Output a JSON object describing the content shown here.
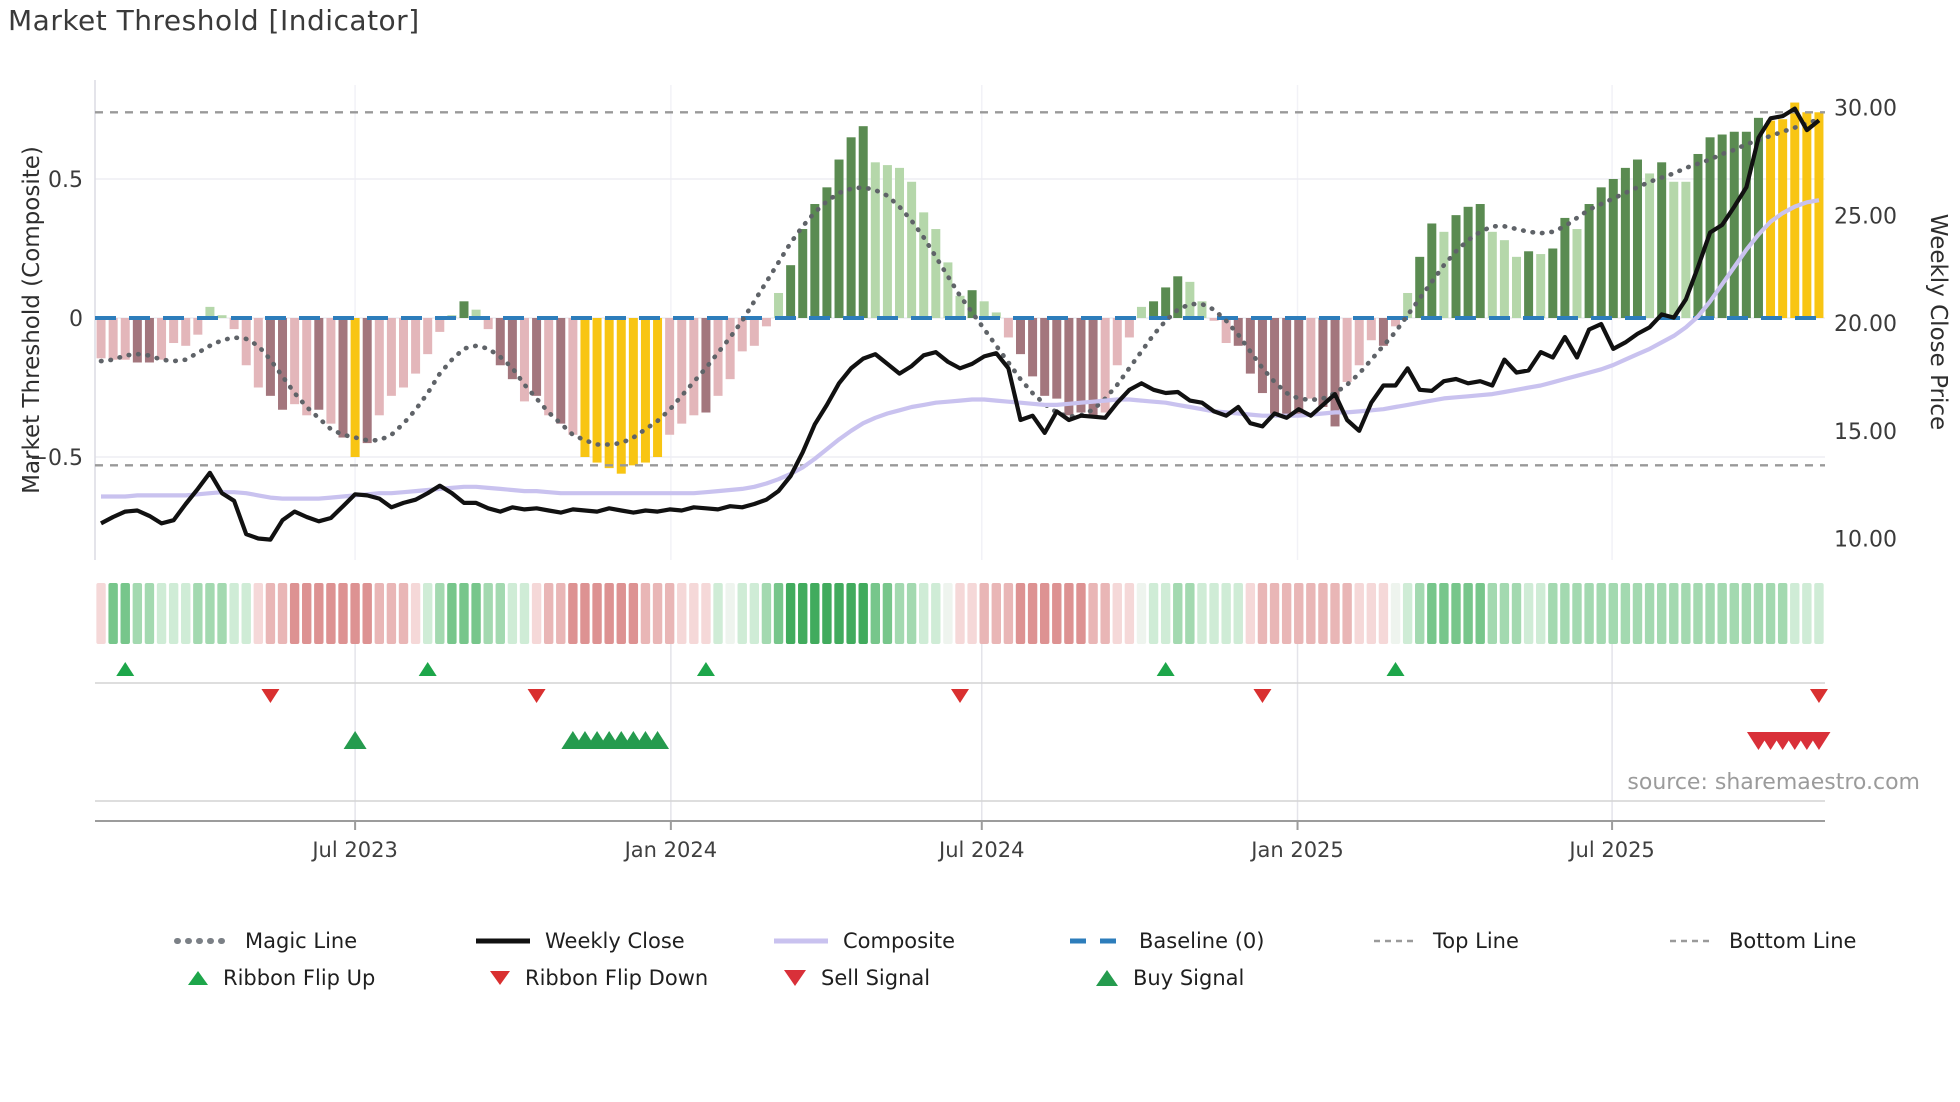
{
  "header": {
    "title": "Market Threshold [Indicator]"
  },
  "axes": {
    "left": {
      "title": "Market Threshold (Composite)",
      "ticks": [
        "0.5",
        "0",
        "−0.5"
      ],
      "tick_values": [
        0.5,
        0,
        -0.5
      ],
      "range": [
        -0.87,
        0.86
      ]
    },
    "right": {
      "title": "Weekly Close Price",
      "ticks": [
        "30.00",
        "25.00",
        "20.00",
        "15.00",
        "10.00"
      ],
      "tick_values": [
        30,
        25,
        20,
        15,
        10
      ],
      "range": [
        9.0,
        31.3
      ]
    },
    "x": {
      "tick_labels": [
        "Jul 2023",
        "Jan 2024",
        "Jul 2024",
        "Jan 2025",
        "Jul 2025"
      ],
      "tick_weeks": [
        21,
        47.1,
        72.8,
        98.9,
        124.9
      ]
    }
  },
  "footer": {
    "source": "source: sharemaestro.com"
  },
  "legend": {
    "items": [
      {
        "label": "Magic Line",
        "glyph": "dotted-gray"
      },
      {
        "label": "Weekly Close",
        "glyph": "solid-black"
      },
      {
        "label": "Composite",
        "glyph": "solid-lavender"
      },
      {
        "label": "Baseline (0)",
        "glyph": "dashed-blue"
      },
      {
        "label": "Top Line",
        "glyph": "smalldash-gray"
      },
      {
        "label": "Bottom Line",
        "glyph": "smalldash-gray"
      },
      {
        "label": "Ribbon Flip Up",
        "glyph": "tri-up-green"
      },
      {
        "label": "Ribbon Flip Down",
        "glyph": "tri-down-red"
      },
      {
        "label": "Sell Signal",
        "glyph": "tri-down-red"
      },
      {
        "label": "Buy Signal",
        "glyph": "tri-up-green"
      }
    ]
  },
  "chart_data": {
    "type": "bar",
    "title": "Market Threshold [Indicator]",
    "x_axis": "weekly, Feb 2023 - Dec 2025",
    "baseline": 0,
    "top_line": 0.74,
    "bottom_line": -0.53,
    "grid": "horizontal at 0.5/0/-0.5, vertical at半 semiannual ticks",
    "legend_position": "bottom",
    "bars": {
      "name": "Market Threshold (Composite) weekly bars",
      "values": [
        -0.145,
        -0.15,
        -0.15,
        -0.16,
        -0.16,
        -0.15,
        -0.09,
        -0.1,
        -0.06,
        0.04,
        0.01,
        -0.04,
        -0.17,
        -0.25,
        -0.28,
        -0.33,
        -0.31,
        -0.35,
        -0.33,
        -0.38,
        -0.43,
        -0.5,
        -0.45,
        -0.35,
        -0.28,
        -0.25,
        -0.2,
        -0.13,
        -0.05,
        0.01,
        0.06,
        0.03,
        -0.04,
        -0.17,
        -0.22,
        -0.3,
        -0.28,
        -0.35,
        -0.38,
        -0.42,
        -0.5,
        -0.52,
        -0.54,
        -0.56,
        -0.53,
        -0.52,
        -0.5,
        -0.42,
        -0.38,
        -0.35,
        -0.34,
        -0.28,
        -0.22,
        -0.12,
        -0.1,
        -0.03,
        0.09,
        0.19,
        0.32,
        0.41,
        0.47,
        0.57,
        0.65,
        0.69,
        0.56,
        0.55,
        0.54,
        0.49,
        0.38,
        0.32,
        0.2,
        0.08,
        0.1,
        0.06,
        0.02,
        -0.07,
        -0.13,
        -0.21,
        -0.28,
        -0.29,
        -0.35,
        -0.34,
        -0.35,
        -0.34,
        -0.17,
        -0.07,
        0.04,
        0.06,
        0.11,
        0.15,
        0.13,
        0.06,
        -0.01,
        -0.09,
        -0.1,
        -0.2,
        -0.27,
        -0.35,
        -0.35,
        -0.35,
        -0.29,
        -0.32,
        -0.39,
        -0.23,
        -0.17,
        -0.08,
        -0.1,
        -0.03,
        0.09,
        0.22,
        0.34,
        0.31,
        0.37,
        0.4,
        0.41,
        0.31,
        0.28,
        0.22,
        0.24,
        0.23,
        0.25,
        0.36,
        0.32,
        0.41,
        0.47,
        0.5,
        0.54,
        0.57,
        0.52,
        0.56,
        0.49,
        0.49,
        0.59,
        0.65,
        0.66,
        0.67,
        0.67,
        0.72,
        0.71,
        0.715,
        0.775,
        0.74,
        0.74
      ],
      "shades": [
        "lp",
        "lp",
        "lp",
        "dp",
        "dp",
        "lp",
        "lp",
        "lp",
        "lp",
        "lg",
        "lg",
        "lp",
        "lp",
        "lp",
        "dp",
        "dp",
        "lp",
        "lp",
        "dp",
        "lp",
        "dp",
        "gd",
        "dp",
        "lp",
        "lp",
        "lp",
        "lp",
        "lp",
        "lp",
        "lg",
        "dg",
        "lg",
        "lp",
        "dp",
        "dp",
        "lp",
        "dp",
        "lp",
        "dp",
        "lp",
        "gd",
        "gd",
        "gd",
        "gd",
        "gd",
        "gd",
        "gd",
        "lp",
        "lp",
        "lp",
        "dp",
        "lp",
        "lp",
        "lp",
        "lp",
        "lp",
        "lg",
        "dg",
        "dg",
        "dg",
        "dg",
        "dg",
        "dg",
        "dg",
        "lg",
        "lg",
        "lg",
        "lg",
        "lg",
        "lg",
        "lg",
        "lg",
        "dg",
        "lg",
        "lg",
        "lp",
        "dp",
        "dp",
        "dp",
        "dp",
        "dp",
        "dp",
        "dp",
        "lp",
        "lp",
        "lp",
        "lg",
        "dg",
        "dg",
        "dg",
        "lg",
        "lg",
        "lp",
        "lp",
        "dp",
        "dp",
        "dp",
        "dp",
        "dp",
        "dp",
        "lp",
        "dp",
        "dp",
        "lp",
        "lp",
        "lp",
        "dp",
        "lp",
        "lg",
        "dg",
        "dg",
        "lg",
        "dg",
        "dg",
        "dg",
        "lg",
        "lg",
        "lg",
        "dg",
        "lg",
        "dg",
        "dg",
        "lg",
        "dg",
        "dg",
        "dg",
        "dg",
        "dg",
        "lg",
        "dg",
        "lg",
        "lg",
        "dg",
        "dg",
        "dg",
        "dg",
        "dg",
        "dg",
        "gd",
        "gd",
        "gd",
        "gd",
        "gd"
      ]
    },
    "series": [
      {
        "name": "Weekly Close",
        "axis": "right",
        "values": [
          10.7,
          11.0,
          11.25,
          11.3,
          11.05,
          10.7,
          10.85,
          11.6,
          12.3,
          13.05,
          12.1,
          11.75,
          10.2,
          10.0,
          9.95,
          10.85,
          11.25,
          11.0,
          10.8,
          10.95,
          11.5,
          12.05,
          12.0,
          11.85,
          11.45,
          11.65,
          11.8,
          12.1,
          12.45,
          12.1,
          11.65,
          11.65,
          11.4,
          11.25,
          11.45,
          11.35,
          11.4,
          11.3,
          11.2,
          11.35,
          11.3,
          11.25,
          11.4,
          11.3,
          11.2,
          11.3,
          11.25,
          11.35,
          11.3,
          11.45,
          11.4,
          11.35,
          11.5,
          11.45,
          11.6,
          11.8,
          12.2,
          12.9,
          14.0,
          15.3,
          16.2,
          17.2,
          17.9,
          18.35,
          18.55,
          18.1,
          17.65,
          18.0,
          18.5,
          18.65,
          18.2,
          17.9,
          18.1,
          18.45,
          18.6,
          17.9,
          15.5,
          15.7,
          14.9,
          15.9,
          15.5,
          15.7,
          15.65,
          15.6,
          16.3,
          16.9,
          17.2,
          16.9,
          16.75,
          16.8,
          16.4,
          16.3,
          15.9,
          15.7,
          16.1,
          15.35,
          15.2,
          15.8,
          15.6,
          16.0,
          15.7,
          16.2,
          16.7,
          15.5,
          15.0,
          16.3,
          17.1,
          17.1,
          17.9,
          16.9,
          16.85,
          17.3,
          17.4,
          17.2,
          17.3,
          17.1,
          18.3,
          17.7,
          17.8,
          18.65,
          18.4,
          19.35,
          18.4,
          19.7,
          19.95,
          18.8,
          19.1,
          19.5,
          19.8,
          20.4,
          20.25,
          21.1,
          22.6,
          24.2,
          24.55,
          25.4,
          26.3,
          28.6,
          29.5,
          29.6,
          29.95,
          28.95,
          29.4
        ]
      },
      {
        "name": "Composite",
        "axis": "right",
        "values": [
          11.95,
          11.95,
          11.95,
          12.0,
          12.0,
          12.0,
          12.0,
          12.0,
          12.05,
          12.1,
          12.15,
          12.15,
          12.1,
          12.0,
          11.9,
          11.85,
          11.85,
          11.85,
          11.85,
          11.9,
          11.95,
          12.0,
          12.05,
          12.1,
          12.1,
          12.15,
          12.2,
          12.25,
          12.3,
          12.35,
          12.4,
          12.4,
          12.35,
          12.3,
          12.25,
          12.2,
          12.2,
          12.15,
          12.1,
          12.1,
          12.1,
          12.1,
          12.1,
          12.1,
          12.1,
          12.1,
          12.1,
          12.1,
          12.1,
          12.1,
          12.15,
          12.2,
          12.25,
          12.3,
          12.4,
          12.55,
          12.75,
          13.0,
          13.3,
          13.7,
          14.15,
          14.6,
          15.0,
          15.35,
          15.6,
          15.8,
          15.95,
          16.1,
          16.2,
          16.3,
          16.35,
          16.4,
          16.45,
          16.45,
          16.4,
          16.35,
          16.3,
          16.25,
          16.2,
          16.2,
          16.25,
          16.3,
          16.35,
          16.4,
          16.45,
          16.45,
          16.4,
          16.35,
          16.3,
          16.2,
          16.1,
          16.0,
          15.9,
          15.85,
          15.8,
          15.75,
          15.7,
          15.7,
          15.7,
          15.7,
          15.75,
          15.8,
          15.85,
          15.85,
          15.9,
          15.95,
          16.0,
          16.1,
          16.2,
          16.3,
          16.4,
          16.5,
          16.55,
          16.6,
          16.65,
          16.7,
          16.8,
          16.9,
          17.0,
          17.1,
          17.25,
          17.4,
          17.55,
          17.7,
          17.85,
          18.05,
          18.3,
          18.55,
          18.8,
          19.1,
          19.4,
          19.8,
          20.3,
          21.0,
          21.8,
          22.6,
          23.4,
          24.1,
          24.7,
          25.1,
          25.4,
          25.6,
          25.7
        ]
      },
      {
        "name": "Magic Line",
        "axis": "left",
        "values": [
          -0.155,
          -0.15,
          -0.135,
          -0.13,
          -0.135,
          -0.15,
          -0.155,
          -0.15,
          -0.125,
          -0.1,
          -0.08,
          -0.07,
          -0.075,
          -0.1,
          -0.15,
          -0.21,
          -0.27,
          -0.32,
          -0.36,
          -0.4,
          -0.42,
          -0.43,
          -0.44,
          -0.44,
          -0.42,
          -0.38,
          -0.33,
          -0.27,
          -0.2,
          -0.15,
          -0.11,
          -0.1,
          -0.11,
          -0.14,
          -0.18,
          -0.24,
          -0.29,
          -0.34,
          -0.38,
          -0.42,
          -0.44,
          -0.455,
          -0.455,
          -0.45,
          -0.43,
          -0.4,
          -0.37,
          -0.33,
          -0.28,
          -0.23,
          -0.18,
          -0.125,
          -0.07,
          -0.01,
          0.06,
          0.13,
          0.2,
          0.27,
          0.33,
          0.38,
          0.42,
          0.45,
          0.465,
          0.47,
          0.46,
          0.44,
          0.4,
          0.35,
          0.29,
          0.22,
          0.15,
          0.08,
          0.02,
          -0.04,
          -0.1,
          -0.16,
          -0.22,
          -0.27,
          -0.31,
          -0.34,
          -0.355,
          -0.35,
          -0.33,
          -0.29,
          -0.24,
          -0.18,
          -0.12,
          -0.06,
          -0.01,
          0.03,
          0.05,
          0.05,
          0.03,
          -0.01,
          -0.06,
          -0.12,
          -0.18,
          -0.23,
          -0.27,
          -0.29,
          -0.295,
          -0.29,
          -0.27,
          -0.24,
          -0.2,
          -0.15,
          -0.1,
          -0.05,
          0.01,
          0.07,
          0.13,
          0.19,
          0.24,
          0.28,
          0.31,
          0.33,
          0.33,
          0.32,
          0.31,
          0.305,
          0.31,
          0.33,
          0.36,
          0.39,
          0.41,
          0.43,
          0.45,
          0.47,
          0.49,
          0.505,
          0.52,
          0.54,
          0.555,
          0.57,
          0.59,
          0.605,
          0.625,
          0.64,
          0.655,
          0.67,
          0.685,
          0.7,
          0.715
        ]
      }
    ],
    "ribbon": [
      "p1",
      "g3",
      "g3",
      "g2",
      "g2",
      "g1",
      "g1",
      "g1",
      "g2",
      "g2",
      "g2",
      "g1",
      "g1",
      "p1",
      "p2",
      "p2",
      "p3",
      "p3",
      "p3",
      "p3",
      "p3",
      "p3",
      "p3",
      "p2",
      "p2",
      "p2",
      "p1",
      "g1",
      "g2",
      "g3",
      "g3",
      "g3",
      "g2",
      "g2",
      "g1",
      "g1",
      "p1",
      "p2",
      "p2",
      "p3",
      "p3",
      "p3",
      "p3",
      "p3",
      "p3",
      "p2",
      "p2",
      "p2",
      "p1",
      "p1",
      "p1",
      "g1",
      "w",
      "g1",
      "g1",
      "g2",
      "g3",
      "g4",
      "g4",
      "g4",
      "g4",
      "g4",
      "g4",
      "g4",
      "g3",
      "g3",
      "g2",
      "g2",
      "g1",
      "g1",
      "w",
      "p1",
      "p1",
      "p2",
      "p2",
      "p2",
      "p3",
      "p3",
      "p3",
      "p3",
      "p3",
      "p3",
      "p2",
      "p2",
      "p1",
      "p1",
      "w",
      "g1",
      "g1",
      "g2",
      "g2",
      "g1",
      "g1",
      "g1",
      "g1",
      "p1",
      "p2",
      "p2",
      "p2",
      "p2",
      "p2",
      "p2",
      "p2",
      "p2",
      "p1",
      "p1",
      "p1",
      "w",
      "g1",
      "g2",
      "g3",
      "g3",
      "g3",
      "g3",
      "g3",
      "g2",
      "g2",
      "g2",
      "g1",
      "g1",
      "g2",
      "g2",
      "g2",
      "g2",
      "g2",
      "g2",
      "g2",
      "g2",
      "g2",
      "g2",
      "g2",
      "g2",
      "g2",
      "g2",
      "g2",
      "g2",
      "g2",
      "g2",
      "g2",
      "g2",
      "g1",
      "g1",
      "g1"
    ],
    "markers": {
      "ribbon_flip_up_weeks": [
        2,
        27,
        50,
        88,
        107
      ],
      "ribbon_flip_down_weeks": [
        14,
        36,
        71,
        96,
        142
      ],
      "buy_signal_weeks": [
        21,
        39,
        40,
        41,
        42,
        43,
        44,
        45,
        46
      ],
      "sell_signal_weeks": [
        137,
        138,
        139,
        140,
        141,
        142
      ]
    },
    "colors": {
      "bar": {
        "lp": "#e3b6ba",
        "dp": "#a3767d",
        "gd": "#f8c513",
        "lg": "#b5d7aa",
        "dg": "#5a8b51"
      },
      "ribbon": {
        "p3": "#dd9292",
        "p2": "#e9b6b6",
        "p1": "#f5d8d8",
        "w": "#eef4ee",
        "g1": "#cfecd6",
        "g2": "#a3d9b0",
        "g3": "#77c68b",
        "g4": "#41ab5d"
      },
      "weekly_close": "#111111",
      "composite": "#c9c2ef",
      "magic_line": "#5f6368",
      "baseline": "#2d7dbb",
      "threshold_lines": "#999999",
      "flip_up": "#1da64a",
      "flip_down": "#d93030",
      "buy": "#259b4e",
      "sell": "#d93039",
      "grid": "#ededf3",
      "spine": "#9c9c9c"
    }
  }
}
